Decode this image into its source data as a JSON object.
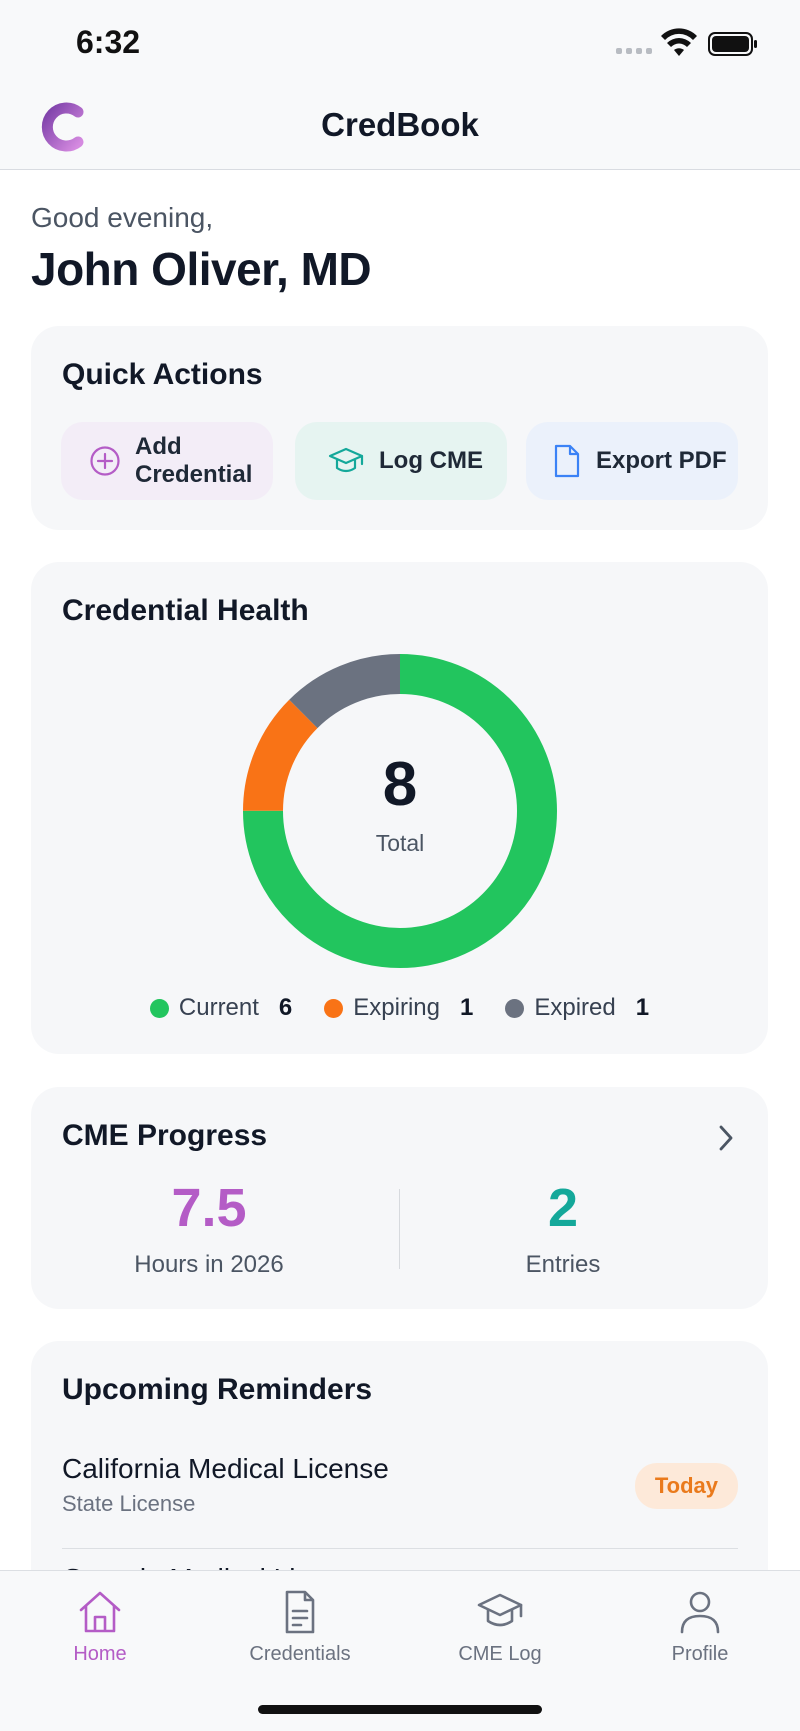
{
  "status_bar": {
    "time": "6:32"
  },
  "nav": {
    "title": "CredBook",
    "logo_letter": "C"
  },
  "greeting": {
    "salutation": "Good evening,",
    "name": "John Oliver, MD"
  },
  "quick_actions": {
    "title": "Quick Actions",
    "buttons": [
      {
        "label": "Add Credential",
        "icon": "plus-circle-icon",
        "color": "#b45cc6"
      },
      {
        "label": "Log CME",
        "icon": "graduation-cap-icon",
        "color": "#14a89a"
      },
      {
        "label": "Export PDF",
        "icon": "document-icon",
        "color": "#3b82f6"
      }
    ]
  },
  "credential_health": {
    "title": "Credential Health",
    "total": "8",
    "total_label": "Total",
    "legend": [
      {
        "label": "Current",
        "count": "6",
        "color": "#22c55e"
      },
      {
        "label": "Expiring",
        "count": "1",
        "color": "#f97316"
      },
      {
        "label": "Expired",
        "count": "1",
        "color": "#6b7280"
      }
    ]
  },
  "cme_progress": {
    "title": "CME Progress",
    "hours": {
      "value": "7.5",
      "label": "Hours in 2026",
      "color": "#b45cc6"
    },
    "entries": {
      "value": "2",
      "label": "Entries",
      "color": "#14a89a"
    }
  },
  "reminders": {
    "title": "Upcoming Reminders",
    "items": [
      {
        "title": "California Medical License",
        "subtitle": "State License",
        "badge": "Today"
      },
      {
        "title": "Georgia Medical Li"
      }
    ]
  },
  "tabs": [
    {
      "label": "Home",
      "icon": "home-icon",
      "active": true
    },
    {
      "label": "Credentials",
      "icon": "document-icon",
      "active": false
    },
    {
      "label": "CME Log",
      "icon": "graduation-cap-icon",
      "active": false
    },
    {
      "label": "Profile",
      "icon": "user-icon",
      "active": false
    }
  ],
  "colors": {
    "accent": "#b45cc6",
    "teal": "#14a89a",
    "orange": "#f97316"
  }
}
